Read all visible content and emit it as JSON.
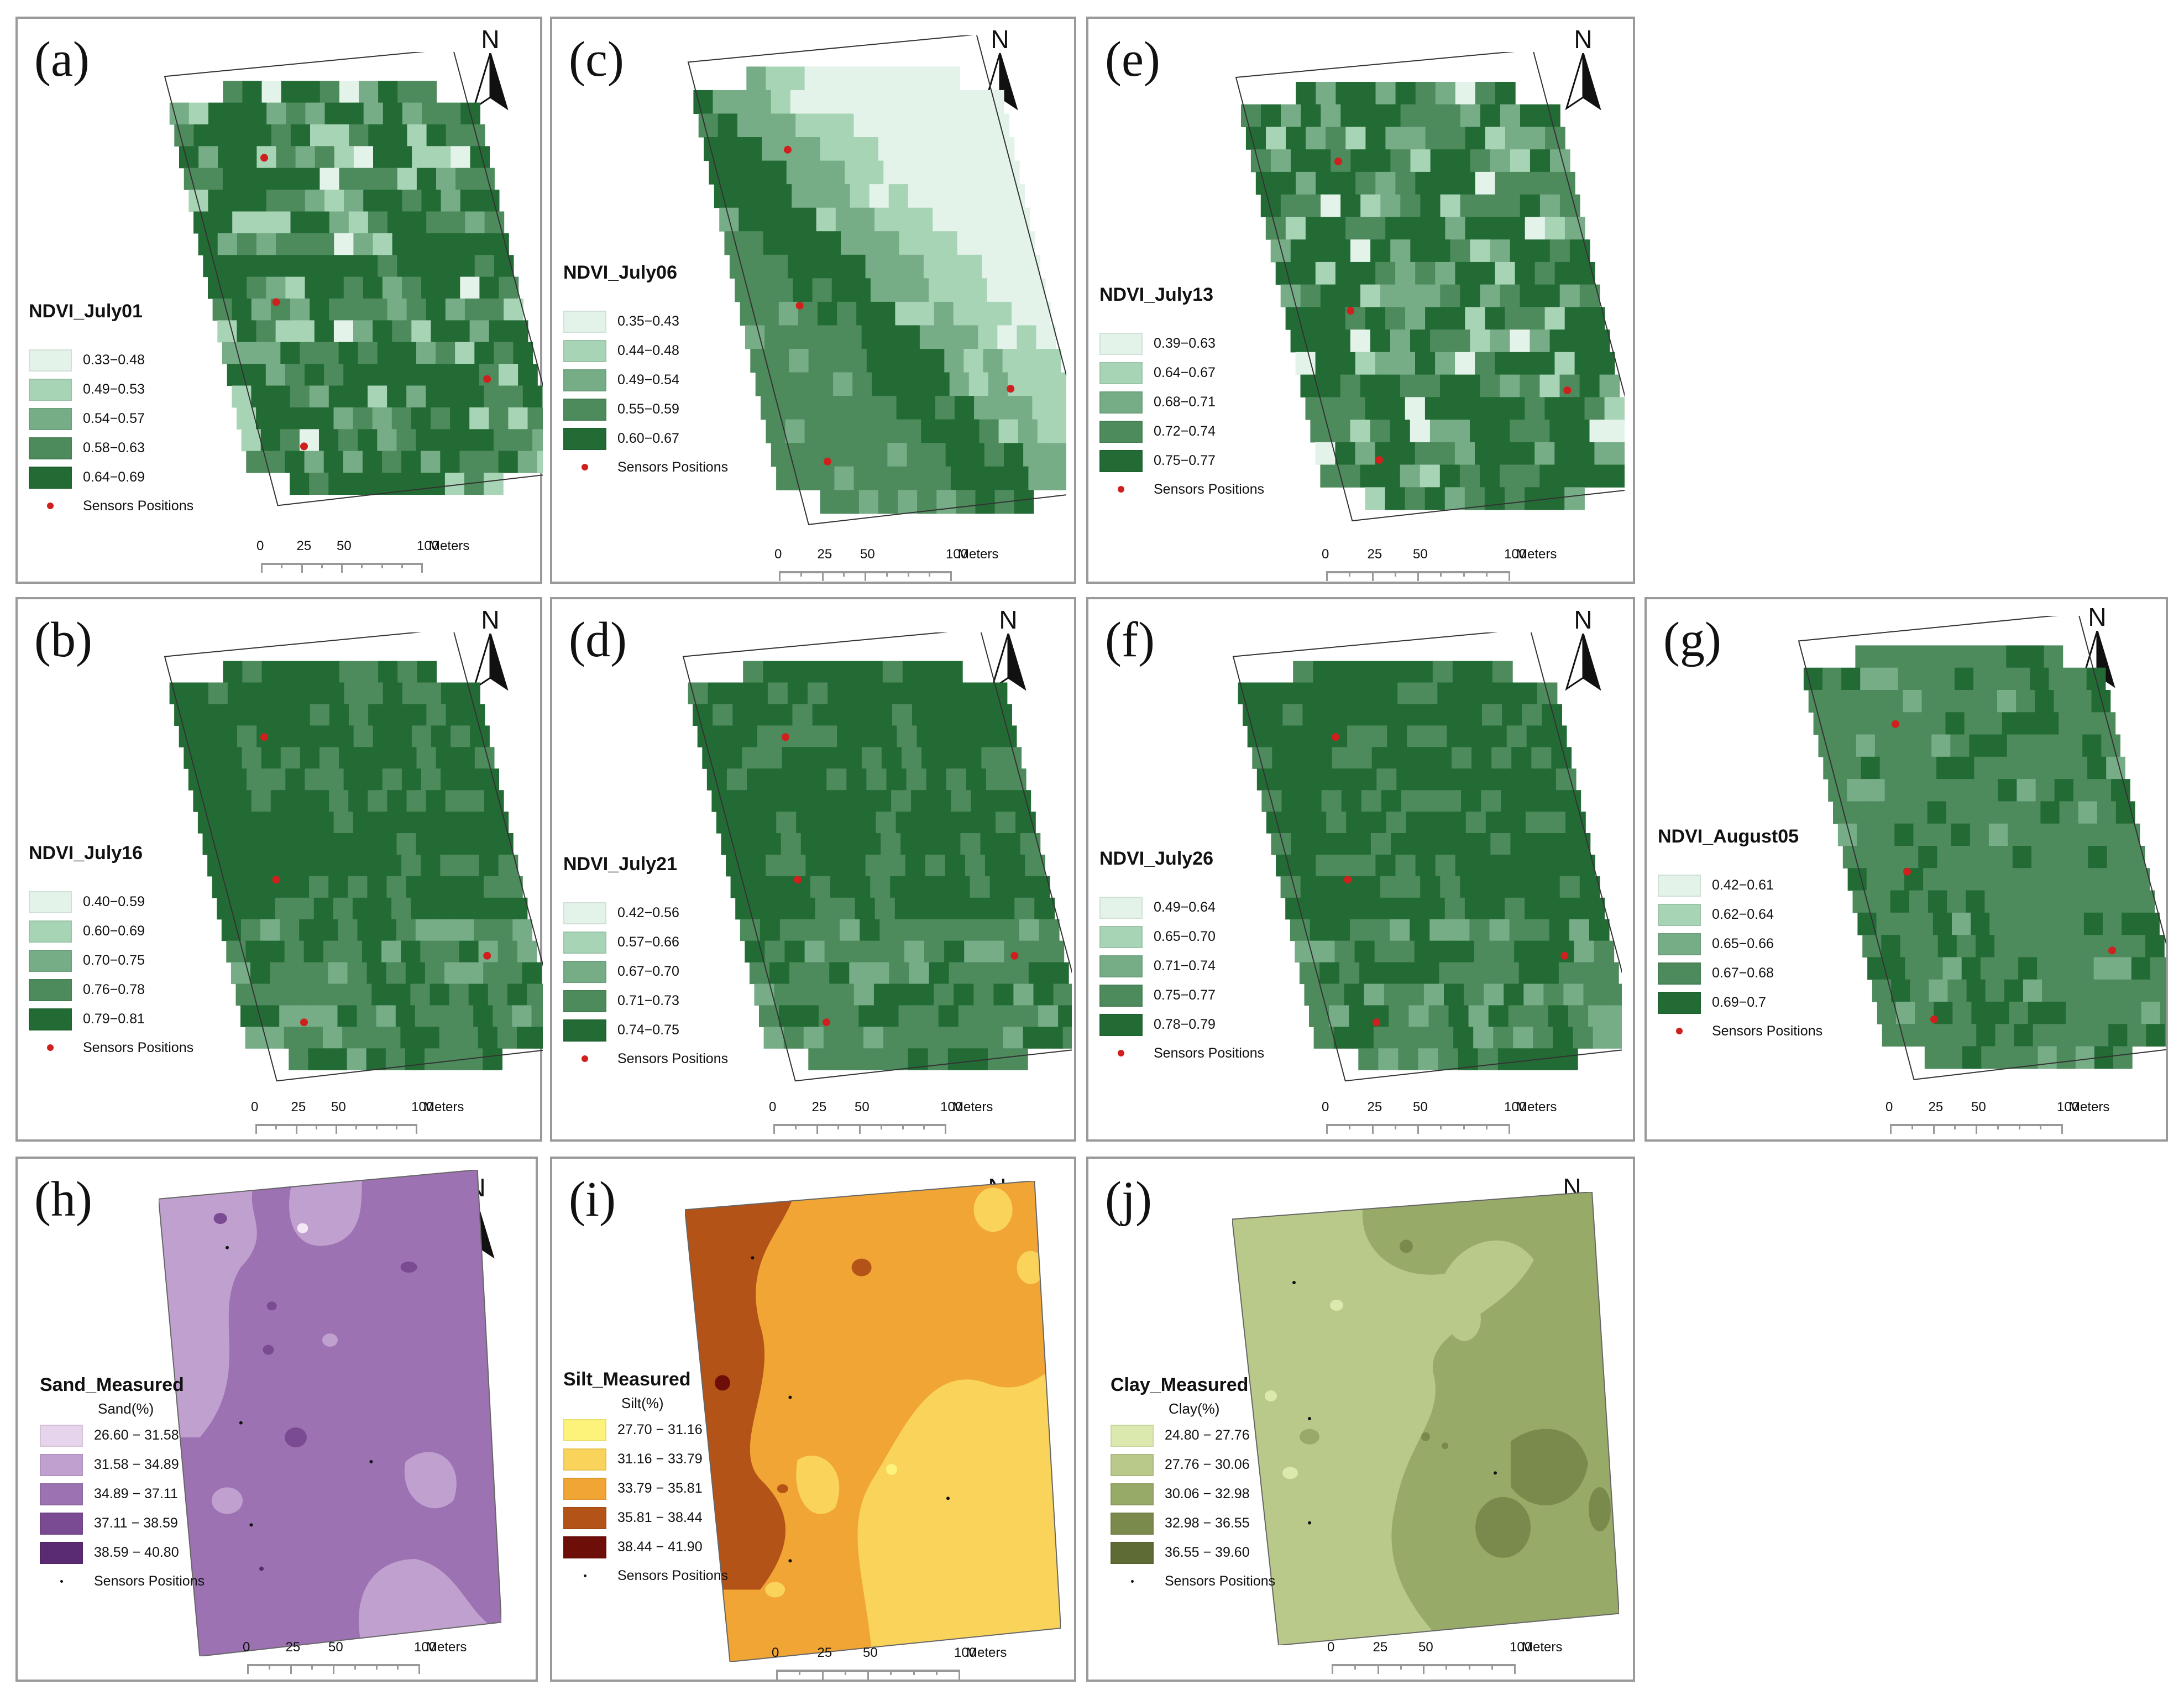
{
  "panels": [
    {
      "id": "a",
      "letter": "(a)",
      "title": "NDVI_July01",
      "legend_sub": "",
      "kind": "ndvi",
      "classes": [
        "0.33−0.48",
        "0.49−0.53",
        "0.54−0.57",
        "0.58−0.63",
        "0.64−0.69"
      ],
      "colors": [
        "#e3f3ea",
        "#a8d4b6",
        "#76ad87",
        "#4d8a5c",
        "#236b35"
      ],
      "dot_color": "#d0201e"
    },
    {
      "id": "c",
      "letter": "(c)",
      "title": "NDVI_July06",
      "legend_sub": "",
      "kind": "ndvi",
      "classes": [
        "0.35−0.43",
        "0.44−0.48",
        "0.49−0.54",
        "0.55−0.59",
        "0.60−0.67"
      ],
      "colors": [
        "#e3f3ea",
        "#a8d4b6",
        "#76ad87",
        "#4d8a5c",
        "#236b35"
      ],
      "dot_color": "#d0201e"
    },
    {
      "id": "e",
      "letter": "(e)",
      "title": "NDVI_July13",
      "legend_sub": "",
      "kind": "ndvi",
      "classes": [
        "0.39−0.63",
        "0.64−0.67",
        "0.68−0.71",
        "0.72−0.74",
        "0.75−0.77"
      ],
      "colors": [
        "#e3f3ea",
        "#a8d4b6",
        "#76ad87",
        "#4d8a5c",
        "#236b35"
      ],
      "dot_color": "#d0201e"
    },
    {
      "id": "b",
      "letter": "(b)",
      "title": "NDVI_July16",
      "legend_sub": "",
      "kind": "ndvi",
      "classes": [
        "0.40−0.59",
        "0.60−0.69",
        "0.70−0.75",
        "0.76−0.78",
        "0.79−0.81"
      ],
      "colors": [
        "#e3f3ea",
        "#a8d4b6",
        "#76ad87",
        "#4d8a5c",
        "#236b35"
      ],
      "dot_color": "#d0201e"
    },
    {
      "id": "d",
      "letter": "(d)",
      "title": "NDVI_July21",
      "legend_sub": "",
      "kind": "ndvi",
      "classes": [
        "0.42−0.56",
        "0.57−0.66",
        "0.67−0.70",
        "0.71−0.73",
        "0.74−0.75"
      ],
      "colors": [
        "#e3f3ea",
        "#a8d4b6",
        "#76ad87",
        "#4d8a5c",
        "#236b35"
      ],
      "dot_color": "#d0201e"
    },
    {
      "id": "f",
      "letter": "(f)",
      "title": "NDVI_July26",
      "legend_sub": "",
      "kind": "ndvi",
      "classes": [
        "0.49−0.64",
        "0.65−0.70",
        "0.71−0.74",
        "0.75−0.77",
        "0.78−0.79"
      ],
      "colors": [
        "#e3f3ea",
        "#a8d4b6",
        "#76ad87",
        "#4d8a5c",
        "#236b35"
      ],
      "dot_color": "#d0201e"
    },
    {
      "id": "g",
      "letter": "(g)",
      "title": "NDVI_August05",
      "legend_sub": "",
      "kind": "ndvi",
      "classes": [
        "0.42−0.61",
        "0.62−0.64",
        "0.65−0.66",
        "0.67−0.68",
        "0.69−0.7"
      ],
      "colors": [
        "#e3f3ea",
        "#a8d4b6",
        "#76ad87",
        "#4d8a5c",
        "#236b35"
      ],
      "dot_color": "#d0201e"
    },
    {
      "id": "h",
      "letter": "(h)",
      "title": "Sand_Measured",
      "legend_sub": "Sand(%)",
      "kind": "soil",
      "classes": [
        "26.60 − 31.58",
        "31.58 − 34.89",
        "34.89 − 37.11",
        "37.11 − 38.59",
        "38.59 − 40.80"
      ],
      "colors": [
        "#e6d3ec",
        "#c0a0cf",
        "#9c72b2",
        "#7a4a92",
        "#5a2a72"
      ],
      "dot_color": "#111111"
    },
    {
      "id": "i",
      "letter": "(i)",
      "title": "Silt_Measured",
      "legend_sub": "Silt(%)",
      "kind": "soil",
      "classes": [
        "27.70 − 31.16",
        "31.16 − 33.79",
        "33.79 − 35.81",
        "35.81 − 38.44",
        "38.44 − 41.90"
      ],
      "colors": [
        "#fdf27a",
        "#fad35a",
        "#f0a535",
        "#b45318",
        "#6e0e08"
      ],
      "dot_color": "#111111"
    },
    {
      "id": "j",
      "letter": "(j)",
      "title": "Clay_Measured",
      "legend_sub": "Clay(%)",
      "kind": "soil",
      "classes": [
        "24.80 − 27.76",
        "27.76 − 30.06",
        "30.06 − 32.98",
        "32.98 − 36.55",
        "36.55 − 39.60"
      ],
      "colors": [
        "#dce9ae",
        "#b8c98a",
        "#98aa68",
        "#7a8a4c",
        "#5e6b34"
      ],
      "dot_color": "#111111"
    }
  ],
  "common": {
    "north_label": "N",
    "sensor_label": "Sensors Positions",
    "scale_labels": [
      "0",
      "25",
      "50",
      "100"
    ],
    "scale_unit": "Meters"
  }
}
